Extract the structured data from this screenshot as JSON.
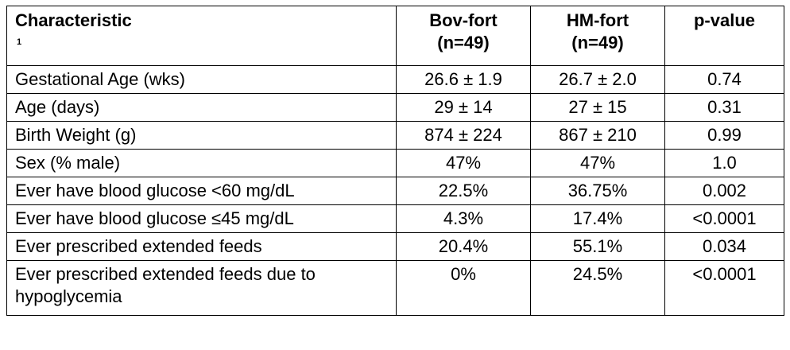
{
  "table": {
    "headers": {
      "characteristic": "Characteristic",
      "footnote": "1",
      "bov_fort_line1": "Bov-fort",
      "bov_fort_line2": "(n=49)",
      "hm_fort_line1": "HM-fort",
      "hm_fort_line2": "(n=49)",
      "p_value": "p-value"
    },
    "rows": [
      {
        "label": "Gestational Age (wks)",
        "bov": "26.6 ± 1.9",
        "hm": "26.7 ± 2.0",
        "p": "0.74"
      },
      {
        "label": "Age (days)",
        "bov": "29 ± 14",
        "hm": "27 ± 15",
        "p": "0.31"
      },
      {
        "label": "Birth Weight (g)",
        "bov": "874 ± 224",
        "hm": "867 ± 210",
        "p": "0.99"
      },
      {
        "label": "Sex (% male)",
        "bov": "47%",
        "hm": "47%",
        "p": "1.0"
      },
      {
        "label": "Ever have blood glucose <60 mg/dL",
        "bov": "22.5%",
        "hm": "36.75%",
        "p": "0.002"
      },
      {
        "label": "Ever have blood glucose ≤45 mg/dL",
        "bov": "4.3%",
        "hm": "17.4%",
        "p": "<0.0001"
      },
      {
        "label": "Ever prescribed extended feeds",
        "bov": "20.4%",
        "hm": "55.1%",
        "p": "0.034"
      },
      {
        "label": "Ever prescribed extended feeds due to hypoglycemia",
        "bov": "0%",
        "hm": "24.5%",
        "p": "<0.0001"
      }
    ]
  }
}
